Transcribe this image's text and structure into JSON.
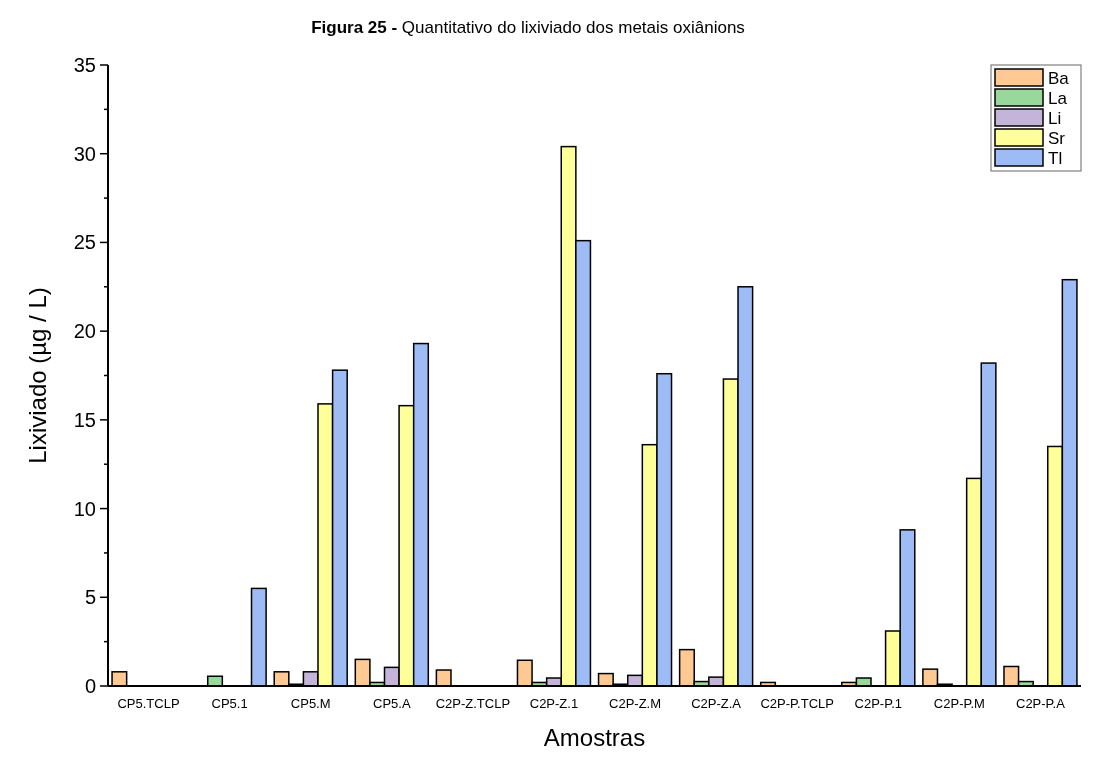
{
  "chart_data": {
    "type": "bar",
    "title": "Figura 25 - Quantitativo do lixiviado dos metais oxiânions",
    "xlabel": "Amostras",
    "ylabel": "Lixiviado (µg / L)",
    "categories": [
      "CP5.TCLP",
      "CP5.1",
      "CP5.M",
      "CP5.A",
      "C2P-Z.TCLP",
      "C2P-Z.1",
      "C2P-Z.M",
      "C2P-Z.A",
      "C2P-P.TCLP",
      "C2P-P.1",
      "C2P-P.M",
      "C2P-P.A"
    ],
    "series": [
      {
        "name": "Ba",
        "color": "#ffc993",
        "values": [
          0.8,
          0,
          0.8,
          1.5,
          0.9,
          1.45,
          0.7,
          2.05,
          0.2,
          0.2,
          0.95,
          1.1
        ]
      },
      {
        "name": "La",
        "color": "#98d89a",
        "values": [
          0,
          0.55,
          0.1,
          0.2,
          0,
          0.2,
          0.1,
          0.25,
          0,
          0.45,
          0.1,
          0.25
        ]
      },
      {
        "name": "Li",
        "color": "#c5b4d9",
        "values": [
          0,
          0,
          0.8,
          1.05,
          0,
          0.45,
          0.6,
          0.5,
          0,
          0,
          0,
          0
        ]
      },
      {
        "name": "Sr",
        "color": "#ffff99",
        "values": [
          0,
          0,
          15.9,
          15.8,
          0,
          30.4,
          13.6,
          17.3,
          0,
          3.1,
          11.7,
          13.5
        ]
      },
      {
        "name": "Tl",
        "color": "#9dbcf6",
        "values": [
          0,
          5.5,
          17.8,
          19.3,
          0,
          25.1,
          17.6,
          22.5,
          0,
          8.8,
          18.2,
          22.9
        ]
      }
    ],
    "ylim": [
      0,
      35
    ],
    "yticks": [
      0,
      {
        "value": 2.5,
        "label": null
      },
      5,
      {
        "value": 7.5,
        "label": null
      },
      10,
      {
        "value": 12.5,
        "label": null
      },
      15,
      {
        "value": 17.5,
        "label": null
      },
      20,
      {
        "value": 22.5,
        "label": null
      },
      25,
      {
        "value": 27.5,
        "label": null
      },
      30,
      {
        "value": 32.5,
        "label": null
      },
      35
    ],
    "grid": false,
    "legend": "top right"
  }
}
